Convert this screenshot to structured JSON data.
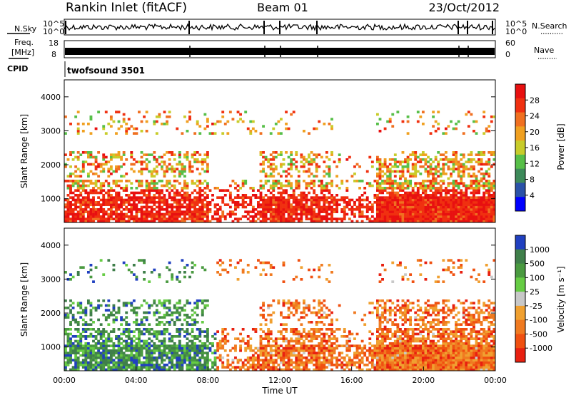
{
  "header": {
    "station": "Rankin Inlet (fitACF)",
    "beam": "Beam 01",
    "date": "23/Oct/2012"
  },
  "nsky_panel": {
    "left_label": "N.Sky",
    "right_label": "N.Search",
    "right_line_style": "dotted",
    "left_ticks": [
      "10^5",
      "10^0"
    ],
    "right_ticks": [
      "10^5",
      "10^0"
    ]
  },
  "freq_panel": {
    "left_label_1": "Freq.",
    "left_label_2": "[MHz]",
    "right_label": "Nave",
    "right_line_style": "dotted",
    "left_ticks": [
      "18",
      "8"
    ],
    "right_ticks": [
      "60",
      "0"
    ]
  },
  "cpid": {
    "label": "CPID",
    "value": "twofsound 3501"
  },
  "colors": {
    "power_scale": [
      "#0000ff",
      "#2a52a8",
      "#3d8a5a",
      "#57bf48",
      "#c8cc2a",
      "#f0a020",
      "#f07020",
      "#f03010",
      "#e81010"
    ],
    "velocity_scale": [
      "#2040c0",
      "#3f7f4a",
      "#4a9a40",
      "#66cc44",
      "#c8c8c8",
      "#f0a030",
      "#f07a20",
      "#f05010",
      "#e82010"
    ]
  },
  "chart_data": [
    {
      "type": "heatmap",
      "name": "power",
      "ylabel": "Slant Range [km]",
      "yticks": [
        "1000",
        "2000",
        "3000",
        "4000"
      ],
      "ylim": [
        300,
        4500
      ],
      "colorbar_label": "Power [dB]",
      "colorbar_ticks": [
        "4",
        "8",
        "12",
        "16",
        "20",
        "24",
        "28"
      ],
      "colorbar_range": [
        0,
        30
      ]
    },
    {
      "type": "heatmap",
      "name": "velocity",
      "ylabel": "Slant Range [km]",
      "yticks": [
        "1000",
        "2000",
        "3000",
        "4000"
      ],
      "ylim": [
        300,
        4500
      ],
      "colorbar_label": "Velocity [m s⁻¹]",
      "colorbar_ticks": [
        "1000",
        "500",
        "100",
        "25",
        "-25",
        "-100",
        "-500",
        "-1000"
      ],
      "xlabel": "Time UT",
      "xticks": [
        "00:00",
        "04:00",
        "08:00",
        "12:00",
        "16:00",
        "20:00",
        "00:00"
      ]
    }
  ]
}
